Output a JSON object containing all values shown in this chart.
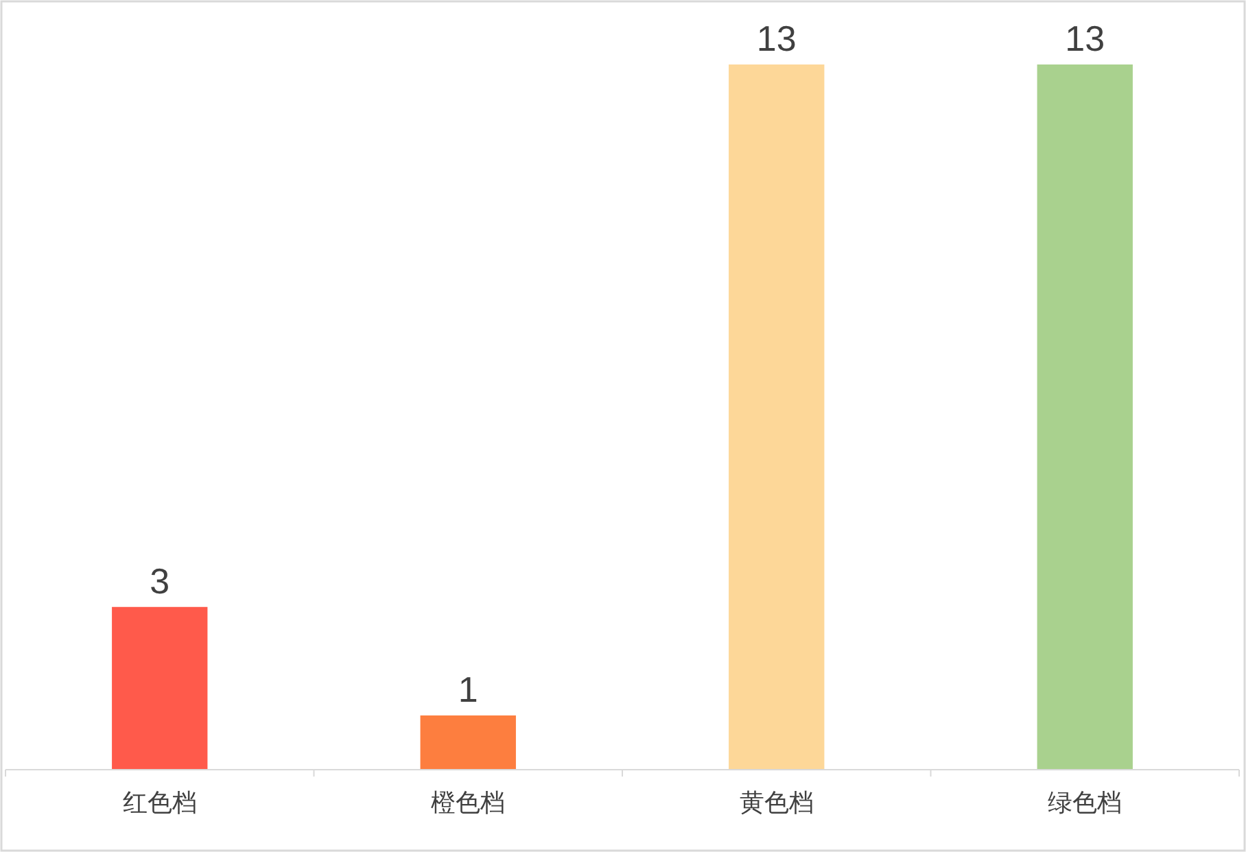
{
  "chart_data": {
    "type": "bar",
    "categories": [
      "红色档",
      "橙色档",
      "黄色档",
      "绿色档"
    ],
    "values": [
      3,
      1,
      13,
      13
    ],
    "colors": [
      "#ff5a4b",
      "#fd7e3f",
      "#fdd798",
      "#a9d18e"
    ],
    "data_labels": true,
    "tick_labels": "x"
  }
}
